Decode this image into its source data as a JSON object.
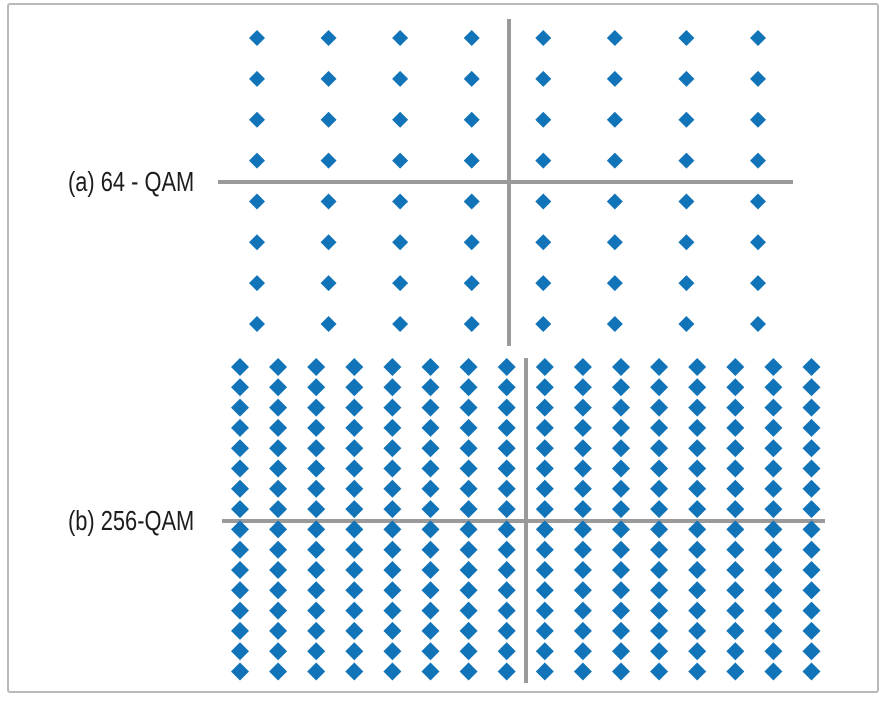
{
  "figure": {
    "background_color": "#ffffff",
    "frame_border_color": "#b9b9b9"
  },
  "chart_data": [
    {
      "id": "qam64",
      "type": "scatter",
      "title": "(a) 64 - QAM",
      "modulation": "64-QAM",
      "marker": "diamond",
      "marker_color": "#1173b8",
      "axis_color": "#9a9a9a",
      "grid_cols": 8,
      "grid_rows": 8,
      "total_points": 64,
      "i_levels": [
        -7,
        -5,
        -3,
        -1,
        1,
        3,
        5,
        7
      ],
      "q_levels": [
        -7,
        -5,
        -3,
        -1,
        1,
        3,
        5,
        7
      ],
      "axis_tick_labels": "none",
      "legend": "none"
    },
    {
      "id": "qam256",
      "type": "scatter",
      "title": "(b) 256-QAM",
      "modulation": "256-QAM",
      "marker": "diamond",
      "marker_color": "#1173b8",
      "axis_color": "#9a9a9a",
      "grid_cols": 16,
      "grid_rows": 16,
      "total_points": 256,
      "i_levels": [
        -15,
        -13,
        -11,
        -9,
        -7,
        -5,
        -3,
        -1,
        1,
        3,
        5,
        7,
        9,
        11,
        13,
        15
      ],
      "q_levels": [
        -15,
        -13,
        -11,
        -9,
        -7,
        -5,
        -3,
        -1,
        1,
        3,
        5,
        7,
        9,
        11,
        13,
        15
      ],
      "axis_tick_labels": "none",
      "legend": "none"
    }
  ]
}
